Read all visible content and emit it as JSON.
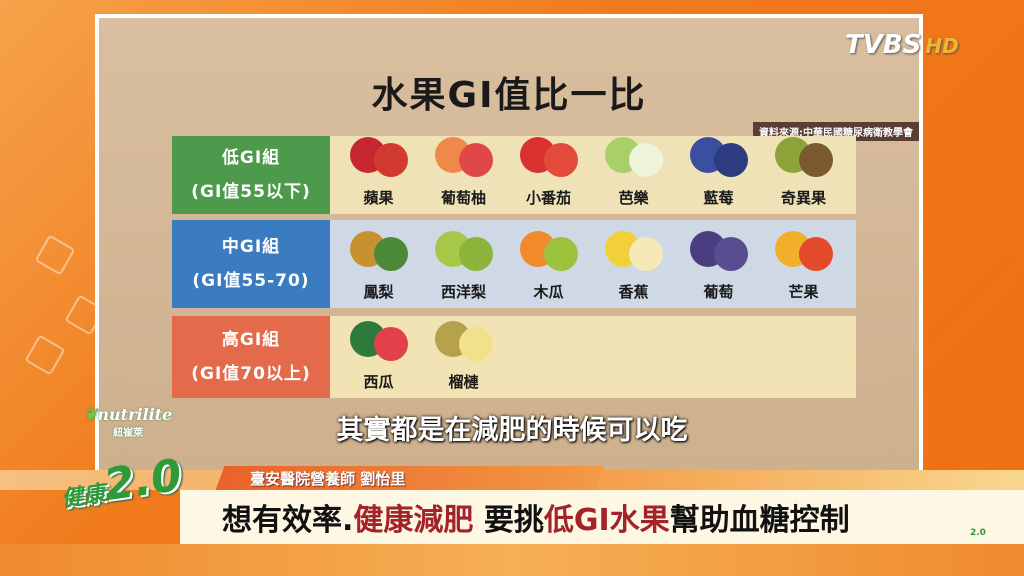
{
  "channel": {
    "logo": "TVBS",
    "hd": "HD"
  },
  "sponsor": {
    "name": "nutrilite",
    "cn": "紐崔萊"
  },
  "show": {
    "logo_cn": "健康",
    "logo_num": "2.0"
  },
  "board": {
    "title": "水果GI值比一比",
    "source": "資料來源:中華民國糖尿病衛教學會",
    "groups": [
      {
        "name": "低GI組",
        "range": "(GI值55以下)",
        "color": "#4e9a4c",
        "bg": "#efe2b6",
        "fruits": [
          "蘋果",
          "葡萄柚",
          "小番茄",
          "芭樂",
          "藍莓",
          "奇異果"
        ]
      },
      {
        "name": "中GI組",
        "range": "(GI值55-70)",
        "color": "#3b7cc0",
        "bg": "#cfd9e6",
        "fruits": [
          "鳳梨",
          "西洋梨",
          "木瓜",
          "香蕉",
          "葡萄",
          "芒果"
        ]
      },
      {
        "name": "高GI組",
        "range": "(GI值70以上)",
        "color": "#e46a4c",
        "bg": "#f1e3b4",
        "fruits": [
          "西瓜",
          "榴槤"
        ]
      }
    ]
  },
  "subtitle": "其實都是在減肥的時候可以吃",
  "reporter": "臺安醫院營養師 劉怡里",
  "headline": {
    "p1": "想有效率.",
    "p2": "健康減肥",
    "p3": " 要挑",
    "p4": "低GI水果",
    "p5": "幫助血糖控制"
  }
}
